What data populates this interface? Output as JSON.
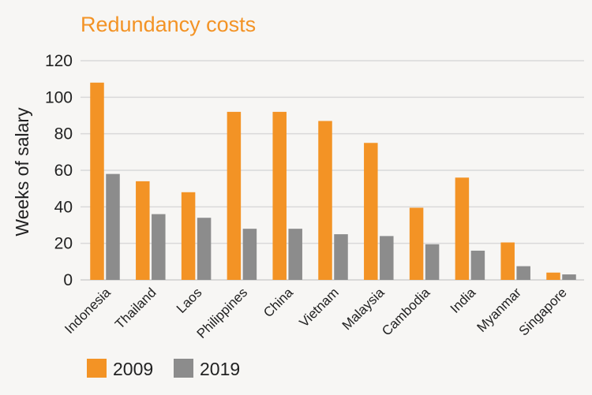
{
  "chart_data": {
    "type": "bar",
    "title": "Redundancy costs",
    "xlabel": "",
    "ylabel": "Weeks of salary",
    "ylim": [
      0,
      120
    ],
    "yticks": [
      0,
      20,
      40,
      60,
      80,
      100,
      120
    ],
    "grid": true,
    "legend_position": "bottom-left",
    "categories": [
      "Indonesia",
      "Thailand",
      "Laos",
      "Philippines",
      "China",
      "Vietnam",
      "Malaysia",
      "Cambodia",
      "India",
      "Myanmar",
      "Singapore"
    ],
    "series": [
      {
        "name": "2009",
        "color": "#f39325",
        "values": [
          108,
          54,
          48,
          92,
          92,
          87,
          75,
          39.5,
          56,
          20.5,
          4
        ]
      },
      {
        "name": "2019",
        "color": "#8c8c8c",
        "values": [
          58,
          36,
          34,
          28,
          28,
          25,
          24,
          19.5,
          16,
          7.5,
          3
        ]
      }
    ],
    "title_color": "#f39325"
  }
}
